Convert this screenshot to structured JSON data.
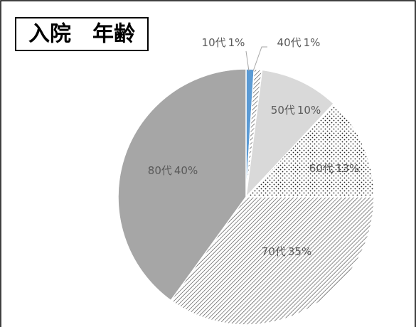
{
  "chart_data": {
    "type": "pie",
    "title": "入院　年齢",
    "categories": [
      "10代",
      "40代",
      "50代",
      "60代",
      "70代",
      "80代"
    ],
    "values": [
      1,
      1,
      10,
      13,
      35,
      40
    ],
    "value_labels": [
      "1%",
      "1%",
      "10%",
      "13%",
      "35%",
      "40%"
    ],
    "colors": [
      "#5b9bd5",
      "#595959",
      "#d9d9d9",
      "#ffffff",
      "#ffffff",
      "#a6a6a6"
    ],
    "patterns": [
      null,
      "diagonal",
      null,
      "dots",
      "diagonal",
      null
    ]
  }
}
